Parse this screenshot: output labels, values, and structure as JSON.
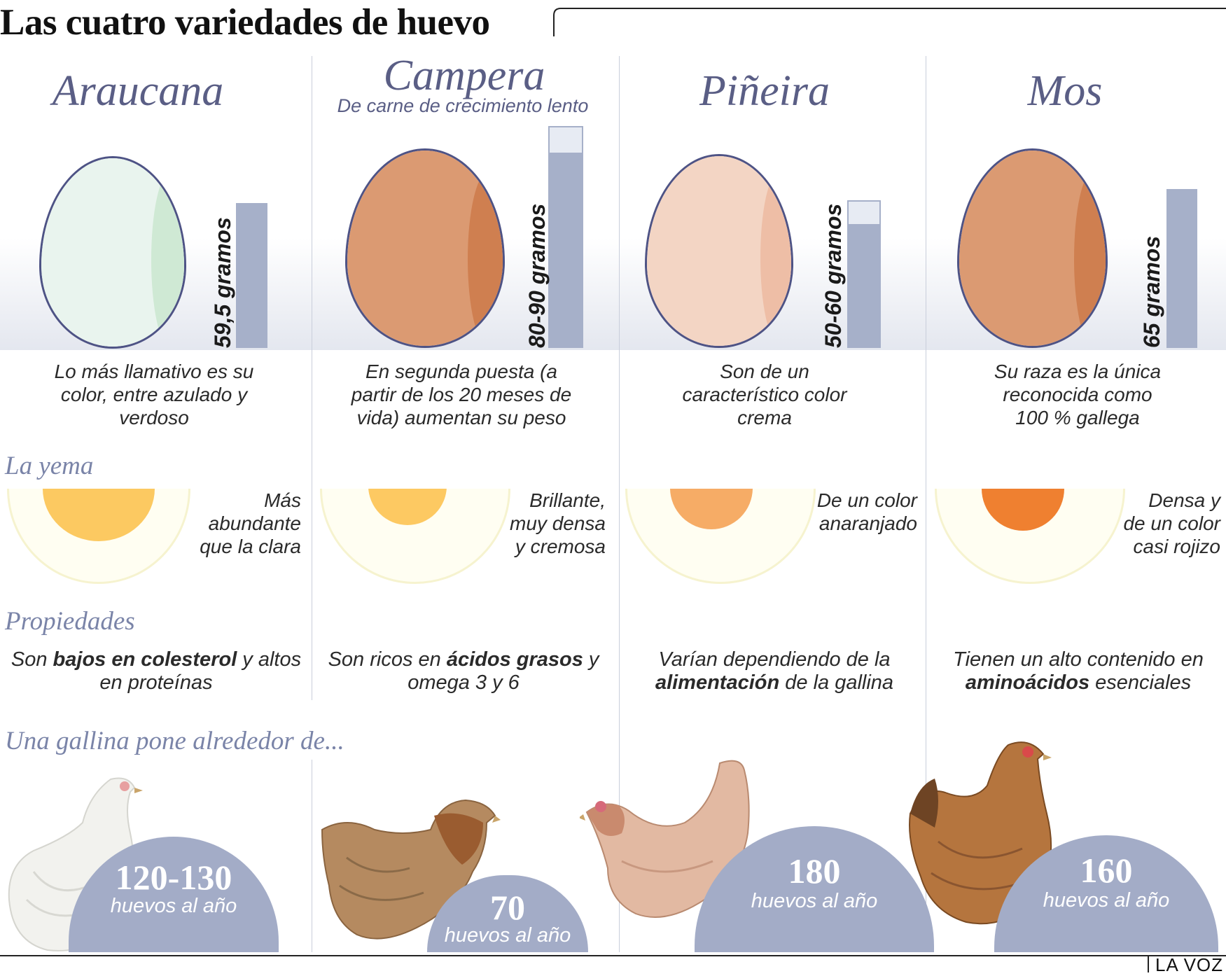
{
  "title": "Las cuatro variedades de huevo",
  "colors": {
    "accent": "#5a5e85",
    "bar": "#a6b0c9",
    "dome": "#a3acc7"
  },
  "sections": {
    "yema": "La yema",
    "propiedades": "Propiedades",
    "gallina": "Una gallina pone alrededor de..."
  },
  "breeds": [
    {
      "name": "Araucana",
      "subtitle": "",
      "weight": "59,5 gramos",
      "weight_range_g": [
        59.5,
        59.5
      ],
      "egg_color": "#e9f4ee",
      "description": [
        "Lo más llamativo es su",
        "color, entre azulado y",
        "verdoso"
      ],
      "yolk_color": "#fcc961",
      "yolk": [
        "Más",
        "abundante",
        "que la clara"
      ],
      "property": {
        "pre": "Son ",
        "bold": "bajos en colesterol",
        "post": " y altos en proteínas"
      },
      "eggs_per_year": "120-130",
      "eggs_unit": "huevos al año"
    },
    {
      "name": "Campera",
      "subtitle": "De carne de crecimiento lento",
      "weight": "80-90 gramos",
      "weight_range_g": [
        80,
        90
      ],
      "egg_color": "#db9a72",
      "description": [
        "En segunda puesta (a",
        "partir de los 20 meses de",
        "vida) aumentan su peso"
      ],
      "yolk_color": "#fdc962",
      "yolk": [
        "Brillante,",
        "muy densa",
        "y cremosa"
      ],
      "property": {
        "pre": "Son ricos en ",
        "bold": "ácidos grasos",
        "post": " y omega 3 y 6"
      },
      "eggs_per_year": "70",
      "eggs_unit": "huevos al año"
    },
    {
      "name": "Piñeira",
      "subtitle": "",
      "weight": "50-60 gramos",
      "weight_range_g": [
        50,
        60
      ],
      "egg_color": "#f3d5c4",
      "description": [
        "Son de un",
        "característico color",
        "crema"
      ],
      "yolk_color": "#f6ac66",
      "yolk": [
        "De un color",
        "anaranjado"
      ],
      "property": {
        "pre": "Varían dependiendo de la ",
        "bold": "alimentación",
        "post": " de la gallina"
      },
      "eggs_per_year": "180",
      "eggs_unit": "huevos al año"
    },
    {
      "name": "Mos",
      "subtitle": "",
      "weight": "65 gramos",
      "weight_range_g": [
        65,
        65
      ],
      "egg_color": "#db9a72",
      "description": [
        "Su raza es la única",
        "reconocida como",
        "100 % gallega"
      ],
      "yolk_color": "#ef8030",
      "yolk": [
        "Densa y",
        "de un color",
        "casi rojizo"
      ],
      "property": {
        "pre": "Tienen un alto contenido en ",
        "bold": "aminoácidos",
        "post": " esenciales"
      },
      "eggs_per_year": "160",
      "eggs_unit": "huevos al año"
    }
  ],
  "footer": {
    "brand": "LA VOZ"
  }
}
